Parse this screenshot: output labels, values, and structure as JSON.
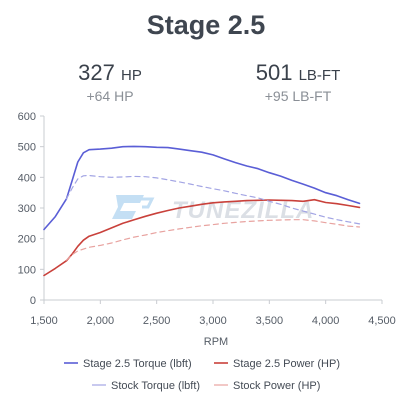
{
  "header": {
    "title": "Stage 2.5",
    "hp_value": "327",
    "hp_unit": "HP",
    "hp_gain": "+64 HP",
    "tq_value": "501",
    "tq_unit": "LB-FT",
    "tq_gain": "+95 LB-FT"
  },
  "watermark": "TUNEZILLA",
  "chart_data": {
    "type": "line",
    "xlabel": "RPM",
    "ylabel": "",
    "xlim": [
      1500,
      4500
    ],
    "ylim": [
      0,
      600
    ],
    "x_ticks": [
      1500,
      2000,
      2500,
      3000,
      3500,
      4000,
      4500
    ],
    "x_tick_labels": [
      "1,500",
      "2,000",
      "2,500",
      "3,000",
      "3,500",
      "4,000",
      "4,500"
    ],
    "y_ticks": [
      0,
      100,
      200,
      300,
      400,
      500,
      600
    ],
    "y_tick_labels": [
      "0",
      "100",
      "200",
      "300",
      "400",
      "500",
      "600"
    ],
    "grid": false,
    "legend_position": "bottom",
    "series": [
      {
        "name": "Stage 2.5 Torque (lbft)",
        "color": "#5a5ed6",
        "style": "solid",
        "points": [
          [
            1500,
            230
          ],
          [
            1600,
            272
          ],
          [
            1700,
            330
          ],
          [
            1750,
            390
          ],
          [
            1800,
            450
          ],
          [
            1850,
            480
          ],
          [
            1900,
            490
          ],
          [
            2000,
            492
          ],
          [
            2100,
            495
          ],
          [
            2200,
            500
          ],
          [
            2300,
            501
          ],
          [
            2400,
            500
          ],
          [
            2500,
            498
          ],
          [
            2600,
            497
          ],
          [
            2700,
            492
          ],
          [
            2800,
            487
          ],
          [
            2900,
            482
          ],
          [
            3000,
            473
          ],
          [
            3100,
            460
          ],
          [
            3200,
            448
          ],
          [
            3300,
            437
          ],
          [
            3400,
            428
          ],
          [
            3500,
            415
          ],
          [
            3600,
            404
          ],
          [
            3700,
            390
          ],
          [
            3800,
            378
          ],
          [
            3900,
            365
          ],
          [
            4000,
            350
          ],
          [
            4100,
            340
          ],
          [
            4200,
            327
          ],
          [
            4300,
            315
          ]
        ]
      },
      {
        "name": "Stage 2.5 Power (HP)",
        "color": "#c9413b",
        "style": "solid",
        "points": [
          [
            1500,
            80
          ],
          [
            1600,
            103
          ],
          [
            1700,
            128
          ],
          [
            1750,
            150
          ],
          [
            1800,
            175
          ],
          [
            1850,
            195
          ],
          [
            1900,
            208
          ],
          [
            2000,
            220
          ],
          [
            2100,
            235
          ],
          [
            2200,
            250
          ],
          [
            2300,
            262
          ],
          [
            2400,
            273
          ],
          [
            2500,
            283
          ],
          [
            2600,
            292
          ],
          [
            2700,
            300
          ],
          [
            2800,
            306
          ],
          [
            2900,
            312
          ],
          [
            3000,
            317
          ],
          [
            3100,
            320
          ],
          [
            3200,
            322
          ],
          [
            3300,
            324
          ],
          [
            3400,
            325
          ],
          [
            3500,
            326
          ],
          [
            3600,
            325
          ],
          [
            3700,
            324
          ],
          [
            3800,
            322
          ],
          [
            3900,
            327
          ],
          [
            4000,
            318
          ],
          [
            4100,
            314
          ],
          [
            4200,
            308
          ],
          [
            4300,
            302
          ]
        ]
      },
      {
        "name": "Stock Torque (lbft)",
        "color": "#a3a5e4",
        "style": "dashed",
        "points": [
          [
            1700,
            330
          ],
          [
            1750,
            365
          ],
          [
            1800,
            395
          ],
          [
            1850,
            405
          ],
          [
            1900,
            406
          ],
          [
            2000,
            402
          ],
          [
            2100,
            400
          ],
          [
            2200,
            401
          ],
          [
            2300,
            403
          ],
          [
            2400,
            402
          ],
          [
            2500,
            398
          ],
          [
            2600,
            392
          ],
          [
            2700,
            385
          ],
          [
            2800,
            378
          ],
          [
            2900,
            370
          ],
          [
            3000,
            363
          ],
          [
            3100,
            356
          ],
          [
            3200,
            348
          ],
          [
            3300,
            340
          ],
          [
            3400,
            333
          ],
          [
            3500,
            322
          ],
          [
            3600,
            312
          ],
          [
            3700,
            300
          ],
          [
            3800,
            290
          ],
          [
            3900,
            280
          ],
          [
            4000,
            270
          ],
          [
            4100,
            262
          ],
          [
            4200,
            255
          ],
          [
            4300,
            248
          ]
        ]
      },
      {
        "name": "Stock Power (HP)",
        "color": "#e8a3a0",
        "style": "dashed",
        "points": [
          [
            1700,
            130
          ],
          [
            1750,
            148
          ],
          [
            1800,
            160
          ],
          [
            1900,
            172
          ],
          [
            2000,
            178
          ],
          [
            2100,
            186
          ],
          [
            2200,
            196
          ],
          [
            2300,
            205
          ],
          [
            2400,
            212
          ],
          [
            2500,
            220
          ],
          [
            2600,
            226
          ],
          [
            2700,
            232
          ],
          [
            2800,
            237
          ],
          [
            2900,
            242
          ],
          [
            3000,
            246
          ],
          [
            3100,
            250
          ],
          [
            3200,
            253
          ],
          [
            3300,
            256
          ],
          [
            3400,
            258
          ],
          [
            3500,
            260
          ],
          [
            3600,
            261
          ],
          [
            3700,
            262
          ],
          [
            3800,
            262
          ],
          [
            3900,
            258
          ],
          [
            4000,
            252
          ],
          [
            4100,
            247
          ],
          [
            4200,
            241
          ],
          [
            4300,
            238
          ]
        ]
      }
    ]
  }
}
